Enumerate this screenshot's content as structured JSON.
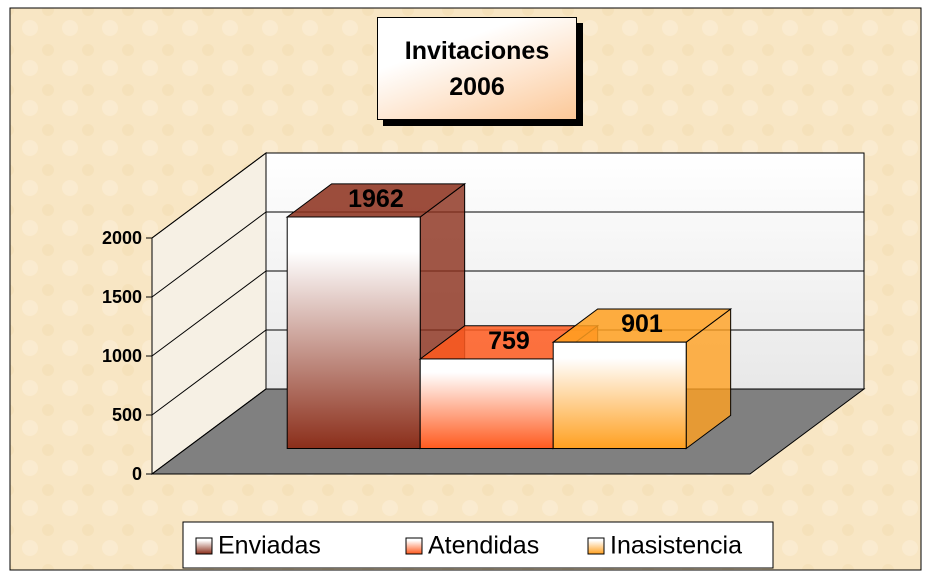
{
  "chart_data": {
    "type": "bar3d",
    "title": "Invitaciones 2006",
    "series": [
      {
        "name": "Enviadas",
        "color": "#8b2e1a",
        "values": [
          1962
        ]
      },
      {
        "name": "Atendidas",
        "color": "#ff5a1e",
        "values": [
          759
        ]
      },
      {
        "name": "Inasistencia",
        "color": "#ffa020",
        "values": [
          901
        ]
      }
    ],
    "ylim": [
      0,
      2000
    ],
    "yticks": [
      0,
      500,
      1000,
      1500,
      2000
    ],
    "grid": true,
    "legend": "bottom"
  }
}
